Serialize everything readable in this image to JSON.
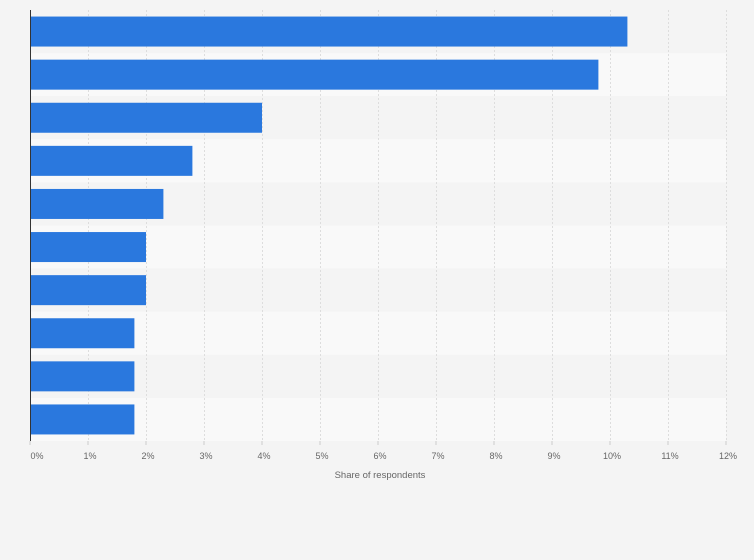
{
  "chart_data": {
    "type": "bar",
    "orientation": "horizontal",
    "title": "",
    "xlabel": "Share of respondents",
    "ylabel": "",
    "xlim": [
      0,
      12
    ],
    "x_ticks": [
      "0%",
      "1%",
      "2%",
      "3%",
      "4%",
      "5%",
      "6%",
      "7%",
      "8%",
      "9%",
      "10%",
      "11%",
      "12%"
    ],
    "categories": [
      "",
      "",
      "",
      "",
      "",
      "",
      "",
      "",
      "",
      ""
    ],
    "values": [
      10.3,
      9.8,
      4.0,
      2.8,
      2.3,
      2.0,
      2.0,
      1.8,
      1.8,
      1.8
    ],
    "unit": "%",
    "grid": true,
    "legend": "none",
    "bar_color": "#2a78de",
    "band_colors": [
      "#f4f4f4",
      "#f9f9f9"
    ]
  }
}
